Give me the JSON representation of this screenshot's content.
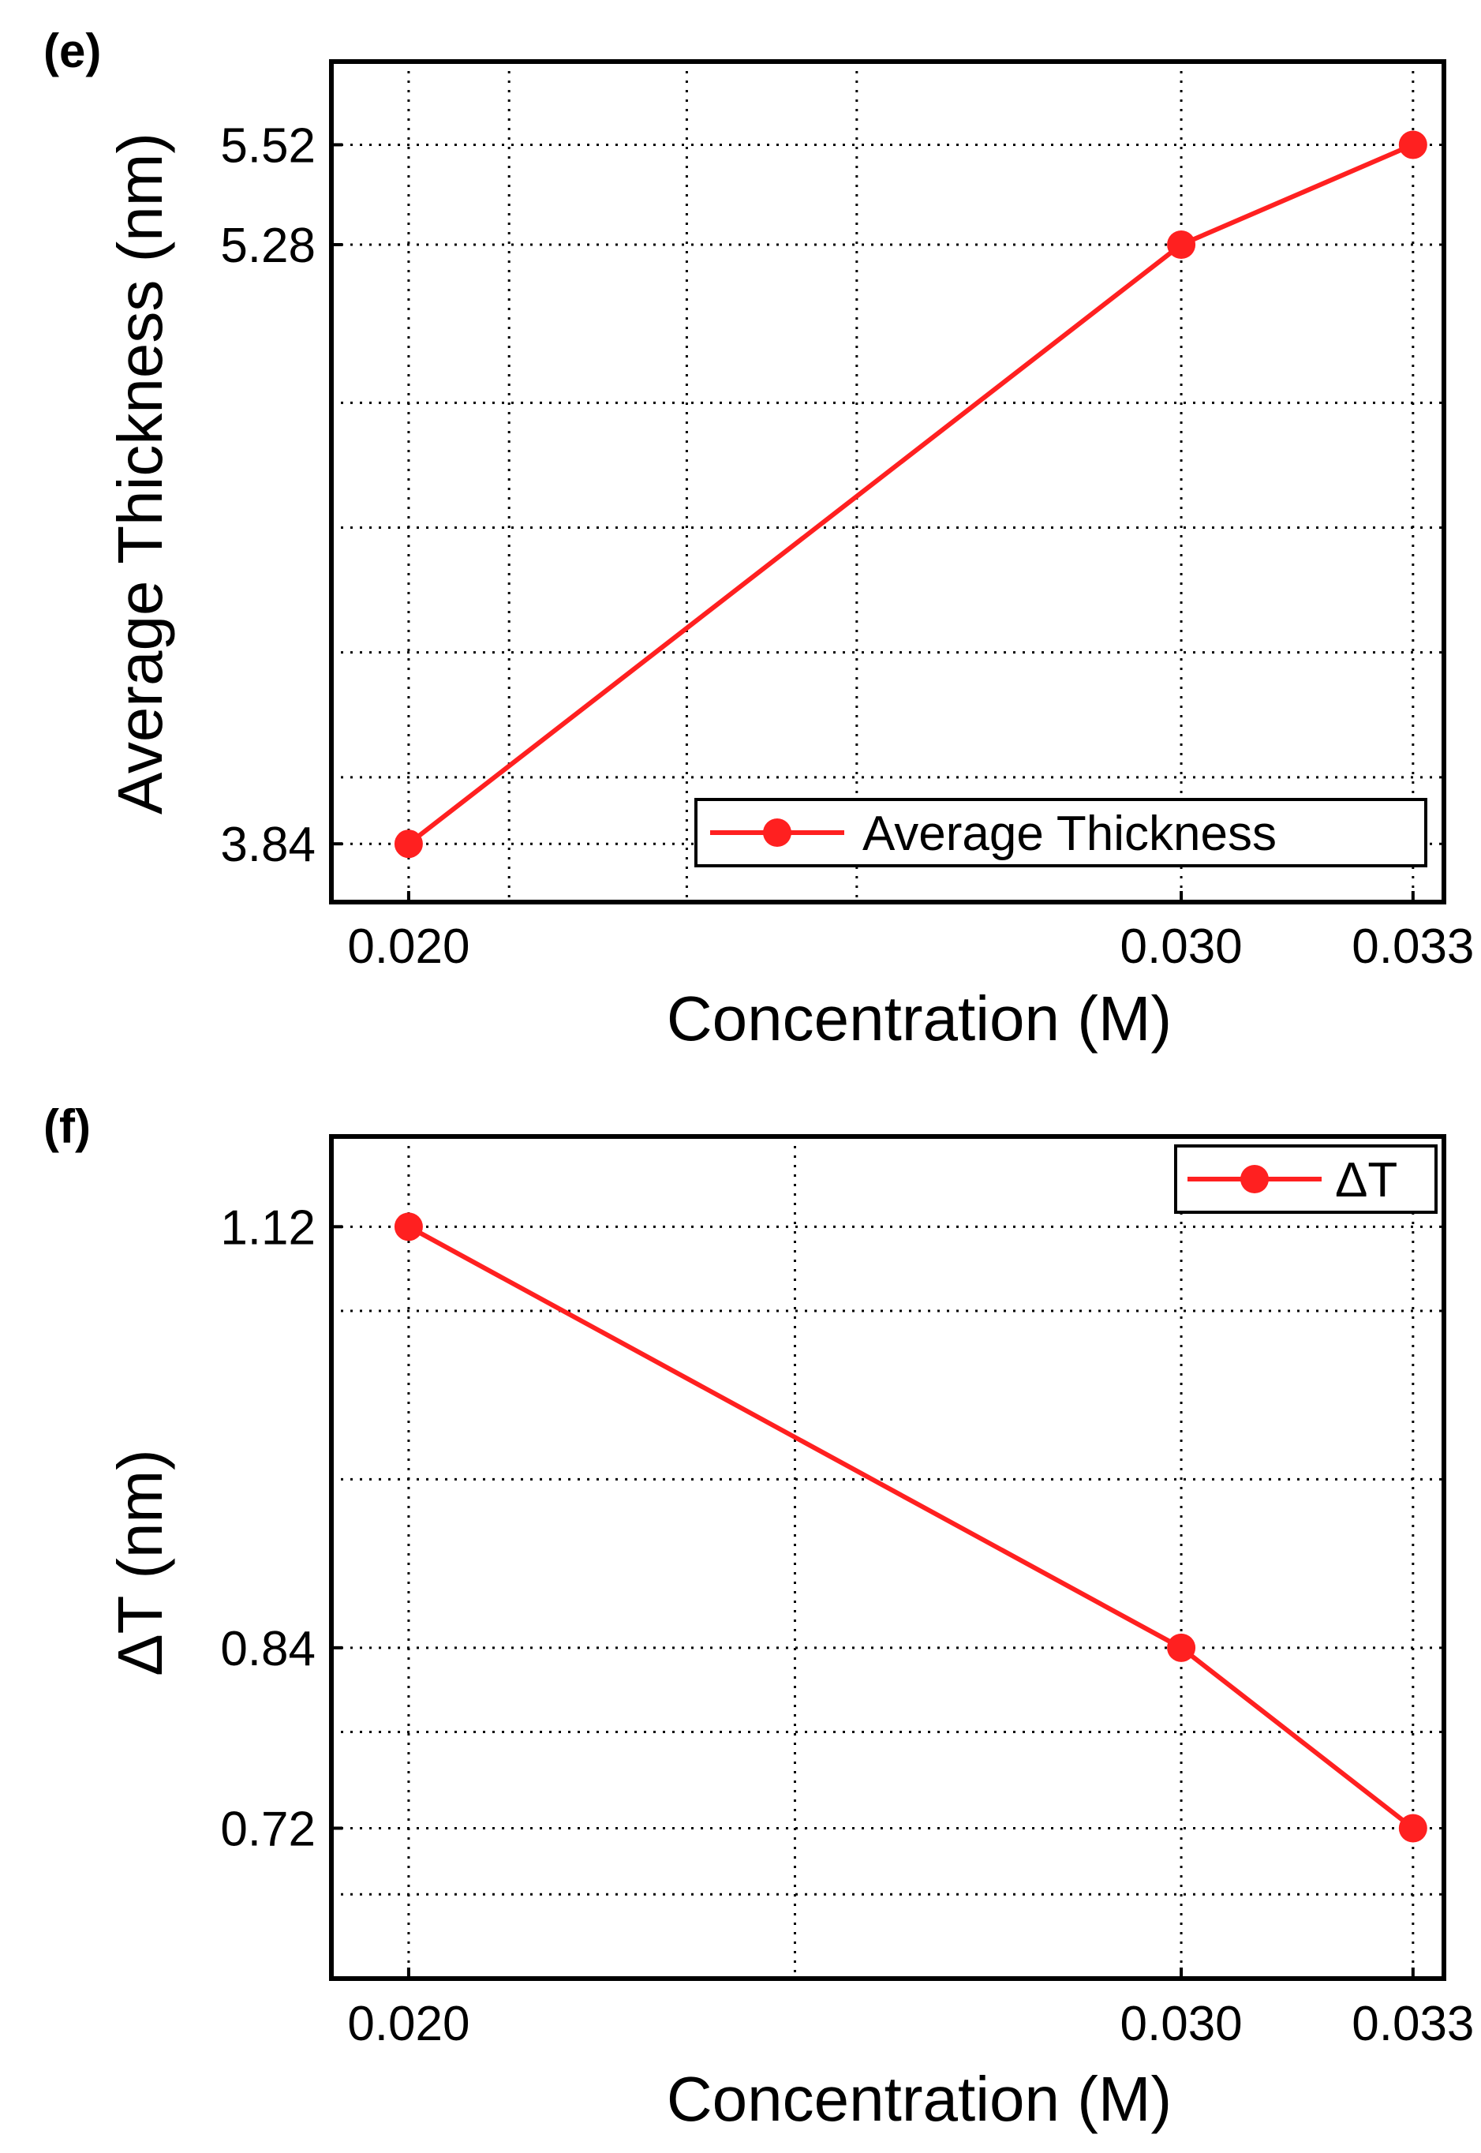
{
  "colors": {
    "series": "#ff2020",
    "axis": "#000000",
    "background": "#ffffff"
  },
  "chart_data": [
    {
      "panel_label": "(e)",
      "type": "line",
      "xlabel": "Concentration (M)",
      "ylabel": "Average Thickness (nm)",
      "x": [
        0.02,
        0.03,
        0.033
      ],
      "xticks": [
        "0.020",
        "0.030",
        "0.033"
      ],
      "yticks": [
        "3.84",
        "5.28",
        "5.52"
      ],
      "xlim": [
        0.019,
        0.0334
      ],
      "ylim": [
        3.7,
        5.72
      ],
      "series": [
        {
          "name": "Average Thickness",
          "values": [
            3.84,
            5.28,
            5.52
          ]
        }
      ],
      "grid": true,
      "legend_position": "bottom-right"
    },
    {
      "panel_label": "(f)",
      "type": "line",
      "xlabel": "Concentration (M)",
      "ylabel": "ΔT (nm)",
      "x": [
        0.02,
        0.03,
        0.033
      ],
      "xticks": [
        "0.020",
        "0.030",
        "0.033"
      ],
      "yticks": [
        "0.72",
        "0.84",
        "1.12"
      ],
      "xlim": [
        0.019,
        0.0334
      ],
      "ylim": [
        0.62,
        1.18
      ],
      "series": [
        {
          "name": "ΔT",
          "values": [
            1.12,
            0.84,
            0.72
          ]
        }
      ],
      "grid": true,
      "legend_position": "top-right"
    }
  ]
}
